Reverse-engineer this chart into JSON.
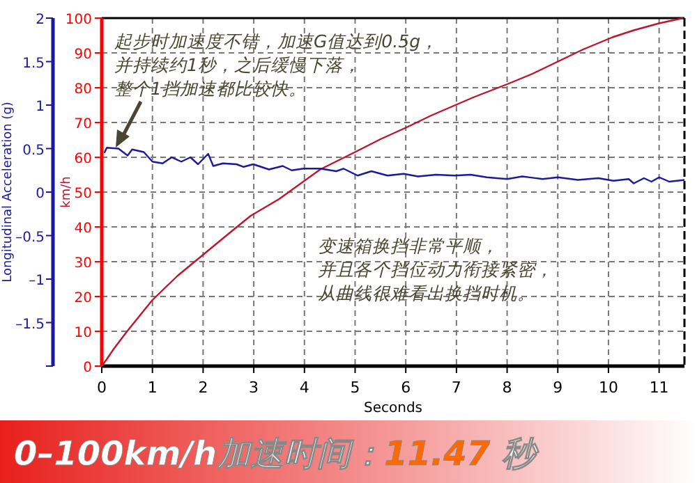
{
  "chart_data": {
    "type": "line",
    "title": "0–100km/h加速时间：11.47 秒",
    "xlabel": "Seconds",
    "ylabel": "km/h",
    "y2label": "Longitudinal Acceleration (g)",
    "annotations": [
      "起步时加速度不错，加速G值达到0.5g，并持续约1秒，之后缓慢下落，整个1挡加速都比较快。",
      "变速箱换挡非常平顺，并且各个挡位动力衔接紧密，从曲线很难看出换挡时机。"
    ],
    "xlim": [
      0,
      11.5
    ],
    "xticks": [
      0,
      1,
      2,
      3,
      4,
      5,
      6,
      7,
      8,
      9,
      10,
      11
    ],
    "ylim": [
      0,
      100
    ],
    "yticks": [
      0,
      10,
      20,
      30,
      40,
      50,
      60,
      70,
      80,
      90,
      100
    ],
    "y2lim": [
      -2,
      2
    ],
    "y2ticks": [
      {
        "value": -2,
        "label": null
      },
      {
        "value": -1.5,
        "label": "–1.5"
      },
      {
        "value": -1,
        "label": "–1"
      },
      {
        "value": -0.5,
        "label": "–0.5"
      },
      0,
      0.5,
      1,
      1.5,
      2
    ],
    "grid": true,
    "marker": "none",
    "line_style": "solid",
    "series": [
      {
        "color": "#c0142c",
        "x": [
          0,
          0.1,
          0.24,
          0.5,
          1,
          1.5,
          2,
          2.5,
          2.94,
          3.5,
          4.31,
          5,
          5.5,
          6,
          6.5,
          7.33,
          8,
          8.5,
          9,
          9.5,
          10.08,
          10.5,
          11,
          11.47
        ],
        "values": [
          0,
          2,
          5,
          10,
          19,
          26,
          32,
          38,
          43.2,
          48,
          56.5,
          61.5,
          65.2,
          68.5,
          72,
          77.2,
          81,
          84,
          87.5,
          91,
          94.5,
          96.5,
          98.5,
          100
        ]
      },
      {
        "color": "#1a1a9c",
        "axis": "y2",
        "x": [
          0.05,
          0.1,
          0.33,
          0.51,
          0.6,
          0.83,
          1.0,
          1.2,
          1.38,
          1.57,
          1.75,
          1.9,
          2.1,
          2.2,
          2.39,
          2.66,
          2.8,
          2.99,
          3.3,
          3.57,
          3.75,
          3.98,
          4.31,
          4.63,
          4.77,
          5.05,
          5.32,
          5.64,
          5.96,
          6.24,
          6.6,
          6.97,
          7.28,
          7.6,
          8.0,
          8.3,
          8.7,
          9.0,
          9.4,
          9.8,
          10.1,
          10.4,
          10.5,
          10.7,
          10.85,
          11.0,
          11.2,
          11.5
        ],
        "values": [
          0.45,
          0.51,
          0.5,
          0.42,
          0.49,
          0.46,
          0.35,
          0.33,
          0.4,
          0.35,
          0.4,
          0.32,
          0.44,
          0.3,
          0.33,
          0.32,
          0.29,
          0.32,
          0.26,
          0.3,
          0.25,
          0.27,
          0.27,
          0.24,
          0.27,
          0.19,
          0.24,
          0.19,
          0.21,
          0.18,
          0.2,
          0.19,
          0.2,
          0.17,
          0.15,
          0.18,
          0.15,
          0.17,
          0.14,
          0.16,
          0.13,
          0.15,
          0.1,
          0.16,
          0.12,
          0.17,
          0.12,
          0.14
        ]
      }
    ]
  }
}
